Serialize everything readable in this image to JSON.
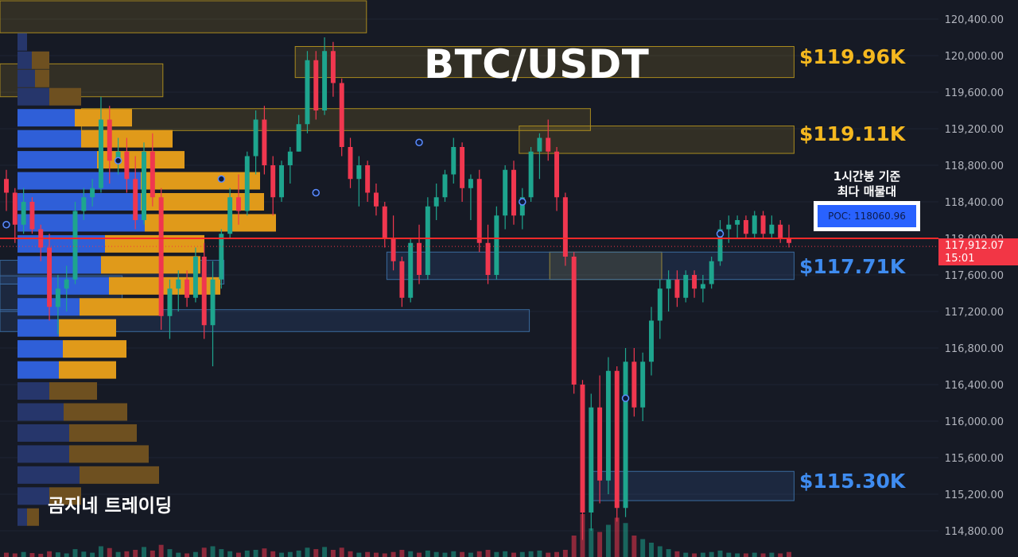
{
  "chart_data": {
    "type": "candlestick",
    "title": "BTC/USDT",
    "watermark": "곰지네 트레이딩",
    "y_axis": {
      "ticks": [
        120400,
        120000,
        119600,
        119200,
        118800,
        118400,
        118000,
        117600,
        117200,
        116800,
        116400,
        116000,
        115600,
        115200,
        114800
      ],
      "tick_labels": [
        "120,400.00",
        "120,000.00",
        "119,600.00",
        "119,200.00",
        "118,800.00",
        "118,400.00",
        "118,000.00",
        "117,600.00",
        "117,200.00",
        "116,800.00",
        "116,400.00",
        "116,000.00",
        "115,600.00",
        "115,200.00",
        "114,800.00"
      ],
      "range": [
        114700,
        120600
      ]
    },
    "current_price": {
      "value": 117912.07,
      "label": "117,912.07",
      "countdown": "15:01"
    },
    "poc_line": 118000,
    "poc": {
      "label": "POC: 118060.96",
      "note_line1": "1시간봉 기준",
      "note_line2": "최다 매물대"
    },
    "key_levels": [
      {
        "label": "$119.96K",
        "color": "#f5b81f"
      },
      {
        "label": "$119.11K",
        "color": "#f5b81f"
      },
      {
        "label": "$117.71K",
        "color": "#3f8cf0"
      },
      {
        "label": "$115.30K",
        "color": "#3f8cf0"
      }
    ],
    "zones": [
      {
        "kind": "supply",
        "y_top": 120600,
        "y_bottom": 120250,
        "x_start": 0.0,
        "x_end": 0.36
      },
      {
        "kind": "supply",
        "y_top": 120100,
        "y_bottom": 119760,
        "x_start": 0.29,
        "x_end": 0.78
      },
      {
        "kind": "supply",
        "y_top": 119910,
        "y_bottom": 119550,
        "x_start": 0.0,
        "x_end": 0.16
      },
      {
        "kind": "supply",
        "y_top": 119420,
        "y_bottom": 119180,
        "x_start": 0.08,
        "x_end": 0.58
      },
      {
        "kind": "supply",
        "y_top": 119230,
        "y_bottom": 118930,
        "x_start": 0.51,
        "x_end": 0.78
      },
      {
        "kind": "supply",
        "y_top": 117850,
        "y_bottom": 117550,
        "x_start": 0.54,
        "x_end": 0.65
      },
      {
        "kind": "demand",
        "y_top": 117850,
        "y_bottom": 117550,
        "x_start": 0.38,
        "x_end": 0.78
      },
      {
        "kind": "demand",
        "y_top": 117760,
        "y_bottom": 117500,
        "x_start": 0.0,
        "x_end": 0.22
      },
      {
        "kind": "demand",
        "y_top": 117590,
        "y_bottom": 117200,
        "x_start": 0.0,
        "x_end": 0.12
      },
      {
        "kind": "demand",
        "y_top": 117220,
        "y_bottom": 116980,
        "x_start": 0.0,
        "x_end": 0.52
      },
      {
        "kind": "demand",
        "y_top": 115450,
        "y_bottom": 115130,
        "x_start": 0.58,
        "x_end": 0.78
      }
    ],
    "volume_profile": [
      {
        "price": 120150,
        "buy": 12,
        "sell": 0
      },
      {
        "price": 119950,
        "buy": 18,
        "sell": 22
      },
      {
        "price": 119750,
        "buy": 22,
        "sell": 18
      },
      {
        "price": 119550,
        "buy": 40,
        "sell": 40
      },
      {
        "price": 119320,
        "buy": 72,
        "sell": 72
      },
      {
        "price": 119090,
        "buy": 80,
        "sell": 115
      },
      {
        "price": 118860,
        "buy": 100,
        "sell": 110
      },
      {
        "price": 118630,
        "buy": 155,
        "sell": 150
      },
      {
        "price": 118400,
        "buy": 155,
        "sell": 155
      },
      {
        "price": 118170,
        "buy": 160,
        "sell": 165
      },
      {
        "price": 117940,
        "buy": 110,
        "sell": 125
      },
      {
        "price": 117710,
        "buy": 105,
        "sell": 125
      },
      {
        "price": 117480,
        "buy": 115,
        "sell": 140
      },
      {
        "price": 117250,
        "buy": 78,
        "sell": 105
      },
      {
        "price": 117020,
        "buy": 52,
        "sell": 72
      },
      {
        "price": 116790,
        "buy": 57,
        "sell": 80
      },
      {
        "price": 116560,
        "buy": 52,
        "sell": 72
      },
      {
        "price": 116330,
        "buy": 40,
        "sell": 60
      },
      {
        "price": 116100,
        "buy": 58,
        "sell": 80
      },
      {
        "price": 115870,
        "buy": 65,
        "sell": 85
      },
      {
        "price": 115640,
        "buy": 65,
        "sell": 100
      },
      {
        "price": 115410,
        "buy": 78,
        "sell": 100
      },
      {
        "price": 115180,
        "buy": 40,
        "sell": 40
      },
      {
        "price": 114950,
        "buy": 12,
        "sell": 15
      }
    ],
    "candles": [
      [
        118650,
        118750,
        118300,
        118500
      ],
      [
        118500,
        118550,
        117950,
        118150
      ],
      [
        118150,
        118550,
        118050,
        118400
      ],
      [
        118400,
        118450,
        118050,
        118100
      ],
      [
        118100,
        118150,
        117750,
        117900
      ],
      [
        117900,
        118050,
        117100,
        117250
      ],
      [
        117250,
        117600,
        116950,
        117450
      ],
      [
        117450,
        117700,
        117200,
        117550
      ],
      [
        117550,
        118400,
        117500,
        118300
      ],
      [
        118300,
        118550,
        118200,
        118450
      ],
      [
        118450,
        118650,
        118350,
        118550
      ],
      [
        118550,
        119550,
        118500,
        119300
      ],
      [
        119300,
        119450,
        118600,
        118850
      ],
      [
        118850,
        119100,
        118700,
        118950
      ],
      [
        118950,
        119100,
        118500,
        118650
      ],
      [
        118650,
        118900,
        118100,
        118200
      ],
      [
        118200,
        119050,
        118150,
        118950
      ],
      [
        118950,
        119150,
        118350,
        118450
      ],
      [
        118450,
        118550,
        117000,
        117150
      ],
      [
        117150,
        117550,
        116900,
        117450
      ],
      [
        117450,
        117650,
        117200,
        117550
      ],
      [
        117550,
        117650,
        117250,
        117350
      ],
      [
        117350,
        117900,
        117300,
        117800
      ],
      [
        117800,
        117950,
        116900,
        117050
      ],
      [
        117050,
        117750,
        116600,
        117550
      ],
      [
        117550,
        118100,
        117450,
        118050
      ],
      [
        118050,
        118550,
        118000,
        118450
      ],
      [
        118450,
        118700,
        118150,
        118300
      ],
      [
        118300,
        118950,
        118250,
        118900
      ],
      [
        118900,
        119400,
        118700,
        119300
      ],
      [
        119300,
        119450,
        118700,
        118800
      ],
      [
        118800,
        118900,
        118250,
        118450
      ],
      [
        118450,
        118850,
        118400,
        118800
      ],
      [
        118800,
        119000,
        118600,
        118950
      ],
      [
        118950,
        119350,
        118950,
        119250
      ],
      [
        119250,
        120050,
        119150,
        119950
      ],
      [
        119950,
        120050,
        119300,
        119400
      ],
      [
        119400,
        120200,
        119350,
        120050
      ],
      [
        120050,
        120150,
        119550,
        119700
      ],
      [
        119700,
        119750,
        118900,
        119000
      ],
      [
        119000,
        119100,
        118550,
        118650
      ],
      [
        118650,
        118900,
        118350,
        118800
      ],
      [
        118800,
        118850,
        118400,
        118500
      ],
      [
        118500,
        118600,
        118250,
        118350
      ],
      [
        118350,
        118400,
        117900,
        118000
      ],
      [
        118000,
        118250,
        117650,
        117750
      ],
      [
        117750,
        117800,
        117250,
        117350
      ],
      [
        117350,
        118000,
        117300,
        117950
      ],
      [
        117950,
        118150,
        117500,
        117600
      ],
      [
        117600,
        118450,
        117550,
        118350
      ],
      [
        118350,
        118600,
        118200,
        118450
      ],
      [
        118450,
        118750,
        118400,
        118700
      ],
      [
        118700,
        119100,
        118600,
        119000
      ],
      [
        119000,
        119050,
        118400,
        118550
      ],
      [
        118550,
        118700,
        118200,
        118650
      ],
      [
        118650,
        118750,
        117850,
        117950
      ],
      [
        117950,
        118150,
        117500,
        117600
      ],
      [
        117600,
        118350,
        117550,
        118250
      ],
      [
        118250,
        118800,
        118100,
        118750
      ],
      [
        118750,
        118850,
        118150,
        118250
      ],
      [
        118250,
        118550,
        118100,
        118450
      ],
      [
        118450,
        119000,
        118400,
        118950
      ],
      [
        118950,
        119150,
        118650,
        119100
      ],
      [
        119100,
        119300,
        118850,
        118950
      ],
      [
        118950,
        119000,
        118300,
        118450
      ],
      [
        118450,
        118500,
        117700,
        117800
      ],
      [
        117800,
        117850,
        116300,
        116400
      ],
      [
        116400,
        116450,
        114700,
        115000
      ],
      [
        115000,
        116300,
        114800,
        116150
      ],
      [
        116150,
        116500,
        115100,
        115350
      ],
      [
        115350,
        116700,
        115200,
        116550
      ],
      [
        116550,
        116600,
        114900,
        115050
      ],
      [
        115050,
        116800,
        114950,
        116650
      ],
      [
        116650,
        116800,
        116050,
        116150
      ],
      [
        116150,
        116750,
        116000,
        116650
      ],
      [
        116650,
        117250,
        116500,
        117100
      ],
      [
        117100,
        117550,
        116900,
        117450
      ],
      [
        117450,
        117650,
        117200,
        117550
      ],
      [
        117550,
        117650,
        117250,
        117350
      ],
      [
        117350,
        117650,
        117300,
        117600
      ],
      [
        117600,
        117650,
        117350,
        117450
      ],
      [
        117450,
        117600,
        117300,
        117500
      ],
      [
        117500,
        117800,
        117450,
        117750
      ],
      [
        117750,
        118200,
        117700,
        118100
      ],
      [
        118100,
        118250,
        117950,
        118150
      ],
      [
        118150,
        118250,
        118000,
        118200
      ],
      [
        118200,
        118250,
        118000,
        118050
      ],
      [
        118050,
        118300,
        118000,
        118250
      ],
      [
        118250,
        118300,
        118000,
        118050
      ],
      [
        118050,
        118250,
        118000,
        118150
      ],
      [
        118150,
        118200,
        117950,
        118000
      ],
      [
        118000,
        118150,
        117900,
        117950
      ]
    ],
    "volumes": [
      12,
      10,
      14,
      11,
      9,
      16,
      13,
      10,
      22,
      15,
      12,
      30,
      25,
      14,
      16,
      20,
      28,
      18,
      34,
      22,
      12,
      10,
      14,
      26,
      30,
      22,
      16,
      12,
      18,
      20,
      24,
      16,
      12,
      14,
      18,
      26,
      22,
      28,
      20,
      26,
      16,
      12,
      14,
      12,
      10,
      14,
      20,
      16,
      12,
      18,
      14,
      12,
      16,
      14,
      12,
      16,
      20,
      14,
      16,
      12,
      14,
      16,
      18,
      12,
      14,
      20,
      60,
      120,
      80,
      70,
      90,
      110,
      95,
      60,
      50,
      40,
      30,
      22,
      16,
      12,
      10,
      12,
      14,
      18,
      12,
      10,
      10,
      12,
      10,
      12,
      10,
      14
    ]
  }
}
